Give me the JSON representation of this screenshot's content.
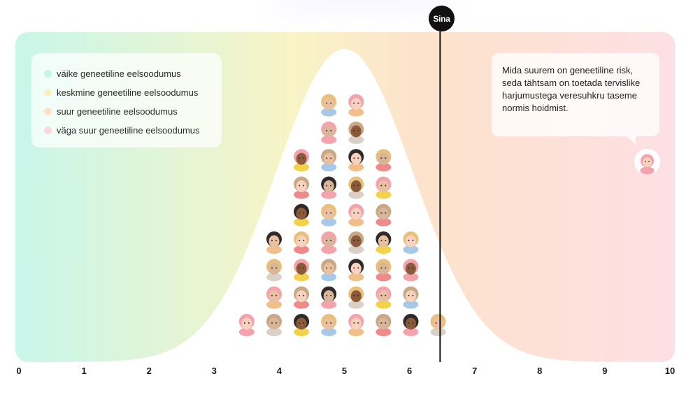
{
  "legend": {
    "items": [
      {
        "label": "väike geneetiline eelsoodumus",
        "color": "#c6f6ea"
      },
      {
        "label": "keskmine geneetiline eelsoodumus",
        "color": "#f8f2c0"
      },
      {
        "label": "suur geneetiline eelsoodumus",
        "color": "#fde0cb"
      },
      {
        "label": "väga suur geneetiline eelsoodumus",
        "color": "#fcd9df"
      }
    ]
  },
  "you": {
    "label": "Sina"
  },
  "bubble": {
    "text": "Mida suurem on geneetiline risk, seda tähtsam on toetada tervislike harjumustega veresuhkru taseme normis hoidmist."
  },
  "colors": {
    "band_low": "#c8f6ea",
    "band_mid": "#f8f4c6",
    "band_high": "#fde2cc",
    "band_very_high": "#fde0e3",
    "marker": "#111111"
  },
  "avatar_styles": {
    "hair_colors": [
      "#f4a3ad",
      "#e8c07a",
      "#2f2a28",
      "#c9a886"
    ],
    "skin_colors": [
      "#f6d2bf",
      "#e9c1a2",
      "#8a5a3b",
      "#d9b59a"
    ],
    "shirt_colors": [
      "#f4a3ad",
      "#ef8a8a",
      "#f1c08a",
      "#a8c8e8",
      "#f2d24a",
      "#d9d0c8"
    ]
  },
  "chart_data": {
    "type": "scatter",
    "title": "",
    "xlabel": "",
    "ylabel": "",
    "xlim": [
      0,
      10
    ],
    "xticks": [
      0,
      1,
      2,
      3,
      4,
      5,
      6,
      7,
      8,
      9,
      10
    ],
    "grid": false,
    "legend_position": "top-left",
    "distribution": {
      "mean": 5.0,
      "sd": 1.05
    },
    "marker": {
      "x": 6.47,
      "label": "Sina"
    },
    "callout_position": "top-right",
    "avatars_per_column": [
      {
        "x": 3.5,
        "count": 1
      },
      {
        "x": 3.92,
        "count": 4
      },
      {
        "x": 4.34,
        "count": 7
      },
      {
        "x": 4.76,
        "count": 9
      },
      {
        "x": 5.18,
        "count": 9
      },
      {
        "x": 5.6,
        "count": 7
      },
      {
        "x": 6.02,
        "count": 4
      },
      {
        "x": 6.44,
        "count": 1
      }
    ]
  }
}
